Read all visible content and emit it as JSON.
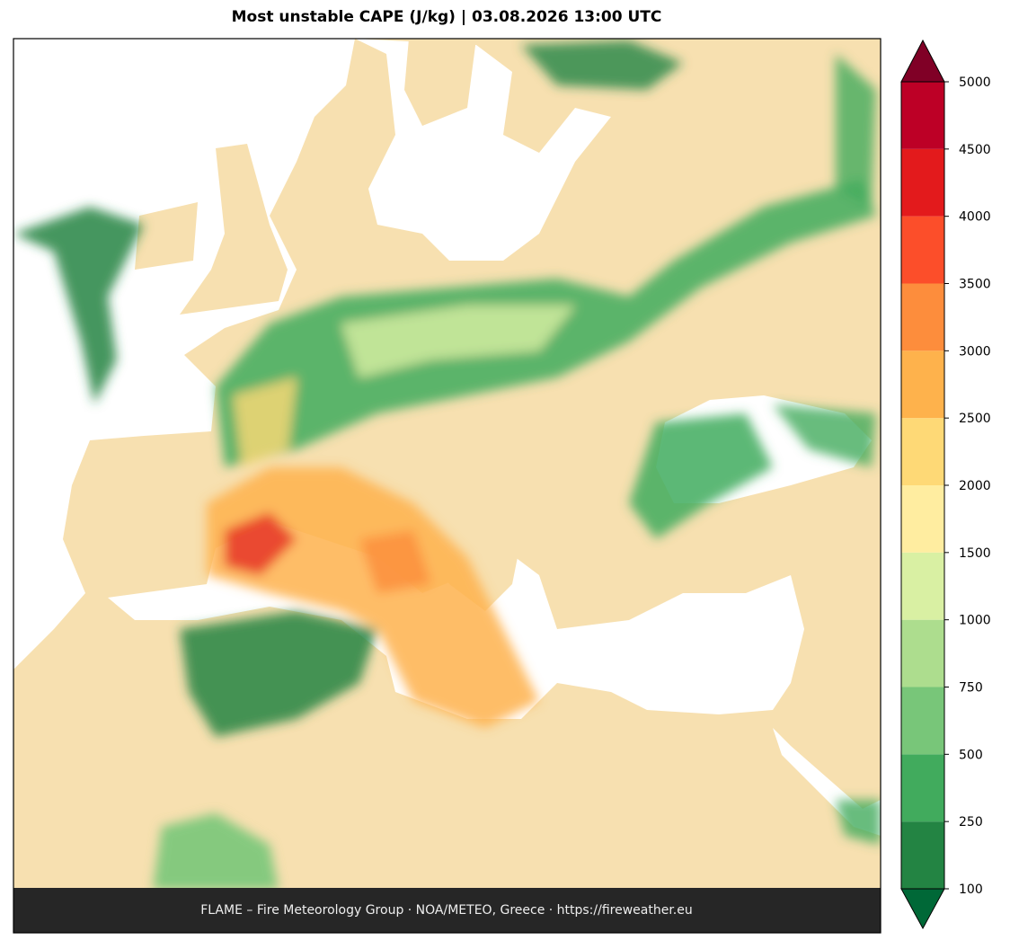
{
  "title": "Most unstable CAPE (J/kg)  |  03.08.2026 13:00 UTC",
  "footer": "FLAME – Fire Meteorology Group · NOA/METEO, Greece · https://fireweather.eu",
  "colorbar": {
    "levels": [
      100,
      250,
      500,
      750,
      1000,
      1500,
      2000,
      2500,
      3000,
      3500,
      4000,
      4500,
      5000
    ],
    "colors": [
      "#238443",
      "#41ab5d",
      "#78c679",
      "#addd8e",
      "#d9f0a3",
      "#ffeda0",
      "#fed976",
      "#feb24c",
      "#fd8d3c",
      "#fc4e2a",
      "#e31a1c",
      "#bd0026"
    ],
    "under_color": "#006837",
    "over_color": "#800026"
  }
}
